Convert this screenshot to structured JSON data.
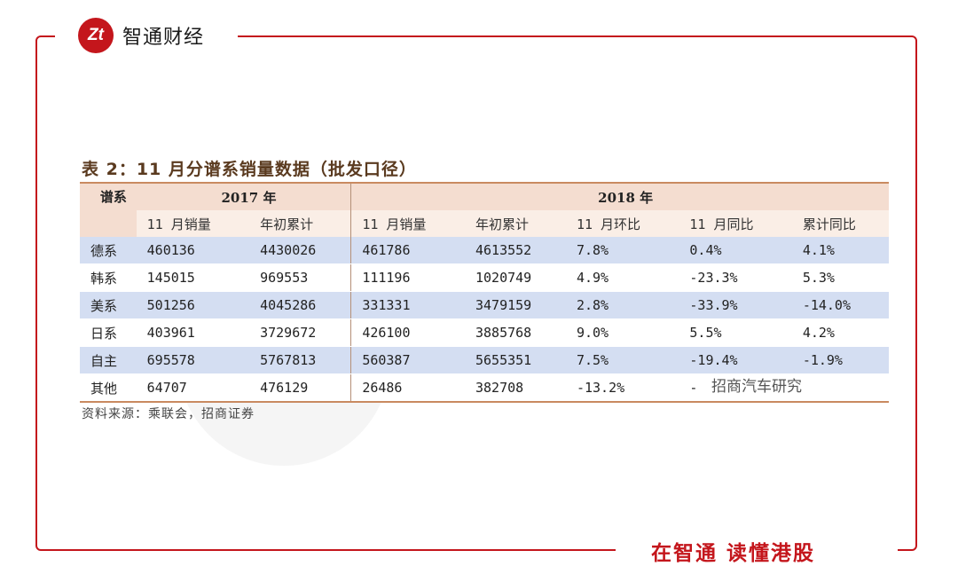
{
  "brand": {
    "logo_mark": "Zt",
    "name": "智通财经"
  },
  "slogan": "在智通  读懂港股",
  "table": {
    "title": "表 2：11 月分谱系销量数据（批发口径）",
    "row_header": "谱系",
    "group_2017": "2017 年",
    "group_2018": "2018 年",
    "sub_headers": [
      "11 月销量",
      "年初累计",
      "11 月销量",
      "年初累计",
      "11 月环比",
      "11 月同比",
      "累计同比"
    ],
    "rows": [
      [
        "德系",
        "460136",
        "4430026",
        "461786",
        "4613552",
        "7.8%",
        "0.4%",
        "4.1%"
      ],
      [
        "韩系",
        "145015",
        "969553",
        "111196",
        "1020749",
        "4.9%",
        "-23.3%",
        "5.3%"
      ],
      [
        "美系",
        "501256",
        "4045286",
        "331331",
        "3479159",
        "2.8%",
        "-33.9%",
        "-14.0%"
      ],
      [
        "日系",
        "403961",
        "3729672",
        "426100",
        "3885768",
        "9.0%",
        "5.5%",
        "4.2%"
      ],
      [
        "自主",
        "695578",
        "5767813",
        "560387",
        "5655351",
        "7.5%",
        "-19.4%",
        "-1.9%"
      ],
      [
        "其他",
        "64707",
        "476129",
        "26486",
        "382708",
        "-13.2%",
        "-",
        ""
      ]
    ],
    "source": "资料来源：乘联会，招商证券"
  },
  "watermark_text": "招商汽车研究"
}
